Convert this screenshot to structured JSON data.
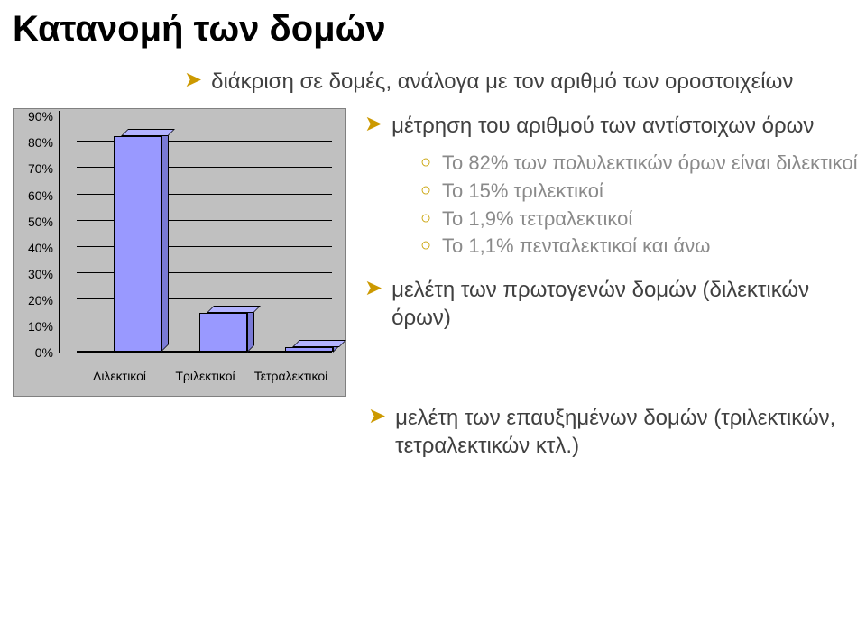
{
  "title": "Κατανομή των δομών",
  "top_bullet": "διάκριση σε δομές, ανάλογα με τον αριθμό των οροστοιχείων",
  "second_bullet": "μέτρηση του αριθμού των αντίστοιχων όρων",
  "sub_bullets": [
    "Το 82% των πολυλεκτικών όρων είναι διλεκτικοί",
    "Το 15% τριλεκτικοί",
    "Το 1,9% τετραλεκτικοί",
    "Το 1,1% πενταλεκτικοί και άνω"
  ],
  "third_bullet": "μελέτη των πρωτογενών δομών (διλεκτικών όρων)",
  "fourth_bullet": "μελέτη των επαυξημένων δομών (τριλεκτικών, τετραλεκτικών κτλ.)",
  "chart": {
    "type": "bar",
    "categories": [
      "Διλεκτικοί",
      "Τριλεκτικοί",
      "Τετραλεκτικοί"
    ],
    "values": [
      82,
      15,
      1.9
    ],
    "bar_face_color": "#9999ff",
    "bar_top_color": "#b3b3ff",
    "bar_side_color": "#7a7ad6",
    "background_color": "#c0c0c0",
    "gridline_color": "#000000",
    "ylim_max": 90,
    "ytick_step": 10,
    "ytick_labels": [
      "0%",
      "10%",
      "20%",
      "30%",
      "40%",
      "50%",
      "60%",
      "70%",
      "80%",
      "90%"
    ],
    "label_fontsize": 14
  },
  "colors": {
    "bullet_arrow": "#cc9900",
    "bullet_circle": "#c8a000",
    "body_text": "#404040",
    "sub_text": "#8a8a8a"
  }
}
